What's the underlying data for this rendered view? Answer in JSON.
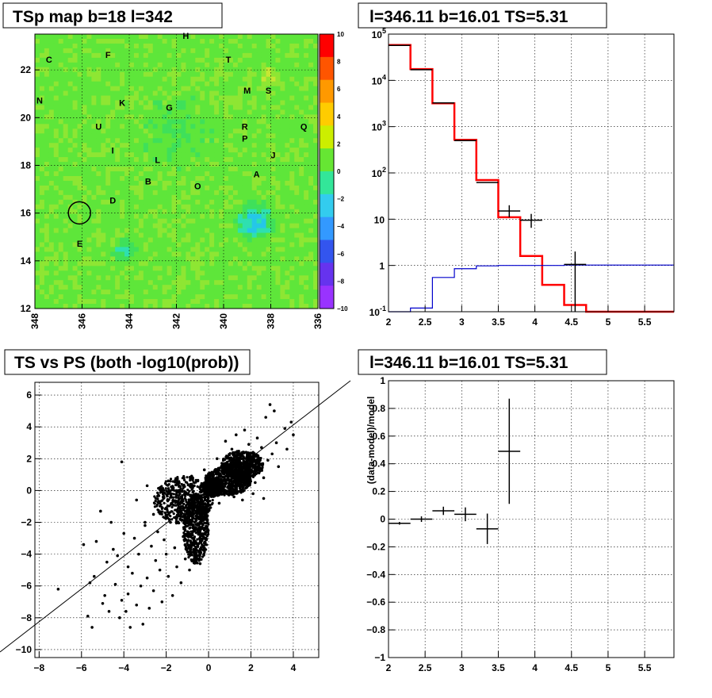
{
  "panels": {
    "map": {
      "title": "TSp map b=18 l=342",
      "x_ticks": [
        "348",
        "346",
        "344",
        "342",
        "340",
        "338",
        "336"
      ],
      "y_ticks": [
        "12",
        "14",
        "16",
        "18",
        "20",
        "22"
      ],
      "colorbar_ticks": [
        "10",
        "8",
        "6",
        "4",
        "2",
        "0",
        "−2",
        "−4",
        "−6",
        "−8",
        "−10"
      ],
      "source_labels": [
        "H",
        "C",
        "F",
        "T",
        "M",
        "S",
        "N",
        "K",
        "G",
        "U",
        "R",
        "P",
        "Q",
        "I",
        "J",
        "L",
        "A",
        "B",
        "O",
        "D",
        "E"
      ]
    },
    "spectrum": {
      "title": "l=346.11 b=16.01 TS=5.31"
    },
    "scatter": {
      "title": "TS vs PS (both -log10(prob))"
    },
    "residual": {
      "title": "l=346.11 b=16.01 TS=5.31"
    }
  },
  "chart_data": [
    {
      "type": "heatmap",
      "title": "TSp map b=18 l=342",
      "xlabel": "",
      "ylabel": "",
      "xlim": [
        348,
        336
      ],
      "ylim": [
        12,
        23.5
      ],
      "zlim": [
        -10,
        10
      ],
      "colors": {
        "background": "#33e633",
        "high": "#e6e633",
        "low": "#33b3e6",
        "very_low": "#3366e6"
      },
      "sources": [
        {
          "label": "H",
          "l": 341.6,
          "b": 23.3
        },
        {
          "label": "C",
          "l": 347.4,
          "b": 22.3
        },
        {
          "label": "F",
          "l": 344.9,
          "b": 22.5
        },
        {
          "label": "T",
          "l": 339.8,
          "b": 22.3
        },
        {
          "label": "M",
          "l": 339.0,
          "b": 21.0
        },
        {
          "label": "S",
          "l": 338.1,
          "b": 21.0
        },
        {
          "label": "N",
          "l": 347.8,
          "b": 20.6
        },
        {
          "label": "K",
          "l": 344.3,
          "b": 20.5
        },
        {
          "label": "G",
          "l": 342.3,
          "b": 20.3
        },
        {
          "label": "U",
          "l": 345.3,
          "b": 19.5
        },
        {
          "label": "R",
          "l": 339.1,
          "b": 19.5
        },
        {
          "label": "P",
          "l": 339.1,
          "b": 19.0
        },
        {
          "label": "Q",
          "l": 336.6,
          "b": 19.5
        },
        {
          "label": "I",
          "l": 344.7,
          "b": 18.5
        },
        {
          "label": "J",
          "l": 337.9,
          "b": 18.3
        },
        {
          "label": "L",
          "l": 342.8,
          "b": 18.1
        },
        {
          "label": "A",
          "l": 338.6,
          "b": 17.5
        },
        {
          "label": "B",
          "l": 343.2,
          "b": 17.2
        },
        {
          "label": "O",
          "l": 341.1,
          "b": 17.0
        },
        {
          "label": "D",
          "l": 344.7,
          "b": 16.4
        },
        {
          "label": "E",
          "l": 346.1,
          "b": 14.6
        }
      ],
      "highlight_circle": {
        "l": 346.11,
        "b": 16.01
      }
    },
    {
      "type": "line",
      "title": "l=346.11 b=16.01 TS=5.31",
      "xlabel": "",
      "ylabel": "",
      "xlim": [
        2,
        5.9
      ],
      "ylim": [
        0.1,
        100000
      ],
      "log_y": true,
      "grid": true,
      "x_ticks": [
        "2",
        "2.5",
        "3",
        "3.5",
        "4",
        "4.5",
        "5",
        "5.5"
      ],
      "y_ticks": [
        "10^-1",
        "1",
        "10",
        "10^2",
        "10^3",
        "10^4",
        "10^5"
      ],
      "bin_edges": [
        2.0,
        2.3,
        2.6,
        2.9,
        3.2,
        3.5,
        3.8,
        4.1,
        4.4,
        4.7,
        5.0,
        5.3,
        5.6,
        5.9
      ],
      "series": [
        {
          "color": "#ff0000",
          "values": [
            58000,
            17500,
            3200,
            520,
            70,
            11,
            1.6,
            0.38,
            0.14,
            0.1,
            0.1,
            0.1,
            0.1
          ]
        },
        {
          "color": "#0000cc",
          "values": [
            0.1,
            0.12,
            0.55,
            0.85,
            0.98,
            1.0,
            1.0,
            1.0,
            1.02,
            1.02,
            1.02,
            1.02,
            1.02
          ]
        },
        {
          "color": "#000000",
          "type": "errorbar",
          "points": [
            {
              "x": 2.15,
              "y": 57000,
              "xerr": 0.15
            },
            {
              "x": 2.45,
              "y": 17000,
              "xerr": 0.15
            },
            {
              "x": 2.75,
              "y": 3250,
              "xerr": 0.15
            },
            {
              "x": 3.05,
              "y": 500,
              "xerr": 0.15
            },
            {
              "x": 3.35,
              "y": 62,
              "xerr": 0.15
            },
            {
              "x": 3.65,
              "y": 15,
              "xerr": 0.15,
              "ylo": 11,
              "yhi": 20
            },
            {
              "x": 3.95,
              "y": 9.5,
              "xerr": 0.15,
              "ylo": 6.5,
              "yhi": 13
            },
            {
              "x": 4.55,
              "y": 1.05,
              "xerr": 0.15,
              "ylo": 0.1,
              "yhi": 2.0
            }
          ]
        }
      ]
    },
    {
      "type": "scatter",
      "title": "TS vs PS (both -log10(prob))",
      "xlabel": "",
      "ylabel": "",
      "xlim": [
        -8.2,
        5.2
      ],
      "ylim": [
        -10.5,
        6.8
      ],
      "grid": true,
      "x_ticks": [
        "−8",
        "−6",
        "−4",
        "−2",
        "0",
        "2",
        "4"
      ],
      "y_ticks": [
        "−10",
        "−8",
        "−6",
        "−4",
        "−2",
        "0",
        "2",
        "4",
        "6"
      ],
      "diagonal_line": [
        [
          -8.2,
          -8.2
        ],
        [
          6.8,
          6.8
        ]
      ],
      "points": [
        [
          -7.1,
          -6.2
        ],
        [
          -5.9,
          -3.4
        ],
        [
          -5.7,
          -7.9
        ],
        [
          -5.6,
          -5.8
        ],
        [
          -5.5,
          -8.6
        ],
        [
          -5.4,
          -5.4
        ],
        [
          -5.3,
          -3.2
        ],
        [
          -5.1,
          -1.3
        ],
        [
          -5.0,
          -7.1
        ],
        [
          -4.9,
          -6.6
        ],
        [
          -4.8,
          -4.5
        ],
        [
          -4.7,
          -7.6
        ],
        [
          -4.6,
          -2.0
        ],
        [
          -4.5,
          -3.7
        ],
        [
          -4.4,
          -5.9
        ],
        [
          -4.3,
          -4.1
        ],
        [
          -4.2,
          -8.0
        ],
        [
          -4.1,
          -6.9
        ],
        [
          -4.0,
          -2.7
        ],
        [
          -3.9,
          -7.6
        ],
        [
          -3.8,
          -4.8
        ],
        [
          -3.8,
          -6.5
        ],
        [
          -3.7,
          -8.6
        ],
        [
          -3.6,
          -5.2
        ],
        [
          -3.5,
          -3.0
        ],
        [
          -3.4,
          -7.2
        ],
        [
          -3.3,
          -4.0
        ],
        [
          -3.2,
          -6.0
        ],
        [
          -3.1,
          -8.4
        ],
        [
          -3.0,
          -2.2
        ],
        [
          -2.9,
          -5.5
        ],
        [
          -2.8,
          -7.4
        ],
        [
          -2.7,
          -3.5
        ],
        [
          -2.6,
          -6.3
        ],
        [
          -2.5,
          -4.4
        ],
        [
          -2.4,
          -2.6
        ],
        [
          -2.3,
          -5.0
        ],
        [
          -2.2,
          -7.0
        ],
        [
          -2.1,
          -3.1
        ],
        [
          -2.0,
          -4.0
        ],
        [
          -1.9,
          -5.4
        ],
        [
          -1.8,
          -2.0
        ],
        [
          -1.7,
          -6.6
        ],
        [
          -1.6,
          -3.6
        ],
        [
          -1.5,
          -4.8
        ],
        [
          -1.4,
          -1.6
        ],
        [
          -1.3,
          -5.8
        ],
        [
          -1.2,
          -2.9
        ],
        [
          -1.1,
          -4.3
        ],
        [
          -1.0,
          -3.2
        ],
        [
          -0.9,
          -5.0
        ],
        [
          -0.8,
          -2.1
        ],
        [
          -0.7,
          -3.9
        ],
        [
          -0.6,
          -1.4
        ],
        [
          -0.5,
          -2.6
        ],
        [
          -0.4,
          -4.6
        ],
        [
          -0.3,
          -1.8
        ],
        [
          -0.2,
          -3.3
        ],
        [
          -0.1,
          -0.9
        ],
        [
          -4.1,
          1.8
        ],
        [
          -3.4,
          -0.6
        ],
        [
          -2.9,
          0.3
        ],
        [
          -2.3,
          -0.7
        ],
        [
          -1.9,
          0.6
        ],
        [
          -1.5,
          -0.3
        ],
        [
          0.2,
          1.1
        ],
        [
          0.4,
          2.0
        ],
        [
          0.6,
          0.7
        ],
        [
          0.8,
          3.1
        ],
        [
          0.9,
          1.6
        ],
        [
          1.0,
          0.4
        ],
        [
          1.1,
          2.6
        ],
        [
          1.2,
          1.2
        ],
        [
          1.3,
          3.5
        ],
        [
          1.4,
          0.9
        ],
        [
          1.5,
          2.2
        ],
        [
          1.6,
          1.5
        ],
        [
          1.7,
          3.8
        ],
        [
          1.8,
          0.6
        ],
        [
          1.9,
          2.9
        ],
        [
          2.0,
          1.3
        ],
        [
          2.1,
          2.4
        ],
        [
          2.2,
          0.5
        ],
        [
          2.3,
          3.3
        ],
        [
          2.4,
          1.7
        ],
        [
          2.5,
          2.7
        ],
        [
          2.6,
          0.8
        ],
        [
          2.7,
          4.6
        ],
        [
          2.8,
          1.9
        ],
        [
          2.9,
          5.4
        ],
        [
          3.0,
          2.3
        ],
        [
          3.1,
          5.0
        ],
        [
          3.2,
          3.0
        ],
        [
          3.3,
          1.5
        ],
        [
          3.6,
          3.9
        ],
        [
          3.7,
          2.6
        ],
        [
          3.9,
          4.3
        ],
        [
          4.0,
          3.5
        ],
        [
          1.2,
          -0.4
        ],
        [
          1.6,
          -0.6
        ],
        [
          2.1,
          -0.2
        ],
        [
          2.6,
          -0.5
        ],
        [
          0.5,
          -0.8
        ],
        [
          -1.2,
          0.3
        ],
        [
          -0.8,
          0.9
        ],
        [
          -0.4,
          0.2
        ],
        [
          -0.2,
          1.3
        ],
        [
          -2.6,
          -1.5
        ],
        [
          -3.0,
          -2.0
        ],
        [
          -2.0,
          -1.1
        ]
      ],
      "dense_cores": [
        {
          "cx": -1.2,
          "cy": -0.6,
          "rx": 1.4,
          "ry": 1.5
        },
        {
          "cx": -0.6,
          "cy": -2.4,
          "rx": 0.6,
          "ry": 2.2
        },
        {
          "cx": 0.9,
          "cy": 0.6,
          "rx": 1.1,
          "ry": 0.9
        },
        {
          "cx": 1.6,
          "cy": 1.6,
          "rx": 1.0,
          "ry": 0.9
        },
        {
          "cx": 0.2,
          "cy": 0.2,
          "rx": 0.5,
          "ry": 0.6
        }
      ]
    },
    {
      "type": "scatter",
      "title": "l=346.11 b=16.01 TS=5.31",
      "xlabel": "",
      "ylabel": "(data-model)/model",
      "xlim": [
        2,
        5.9
      ],
      "ylim": [
        -1,
        1
      ],
      "grid": true,
      "x_ticks": [
        "2",
        "2.5",
        "3",
        "3.5",
        "4",
        "4.5",
        "5",
        "5.5"
      ],
      "y_ticks": [
        "−1",
        "−0.8",
        "−0.6",
        "−0.4",
        "−0.2",
        "0",
        "0.2",
        "0.4",
        "0.6",
        "0.8",
        "1"
      ],
      "points": [
        {
          "x": 2.15,
          "y": -0.03,
          "xerr": 0.15,
          "yerr": 0.01
        },
        {
          "x": 2.45,
          "y": 0.0,
          "xerr": 0.15,
          "yerr": 0.02
        },
        {
          "x": 2.75,
          "y": 0.06,
          "xerr": 0.15,
          "yerr": 0.03
        },
        {
          "x": 3.05,
          "y": 0.035,
          "xerr": 0.15,
          "yerr": 0.05
        },
        {
          "x": 3.35,
          "y": -0.07,
          "xerr": 0.15,
          "yerr": 0.11
        },
        {
          "x": 3.65,
          "y": 0.49,
          "xerr": 0.15,
          "yerr": 0.38
        }
      ]
    }
  ]
}
